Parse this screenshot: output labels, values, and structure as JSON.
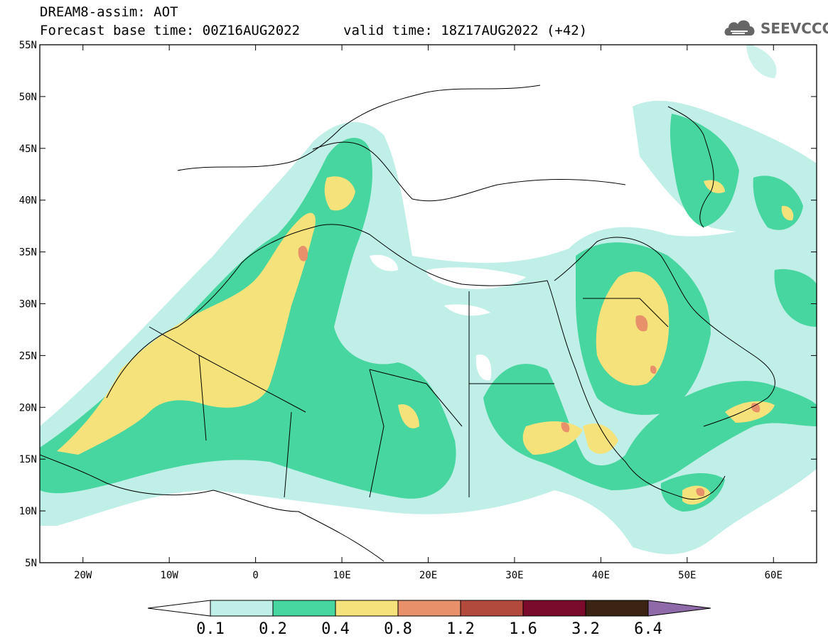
{
  "title": {
    "model": "DREAM8-assim: AOT",
    "base_time": "Forecast base time: 00Z16AUG2022",
    "valid_time": "valid time: 18Z17AUG2022 (+42)"
  },
  "logo": {
    "name": "SEEVCCC",
    "icon": "cloud-icon",
    "color": "#666666"
  },
  "map_extent": {
    "lon_min": -25,
    "lon_max": 65,
    "lat_min": 5,
    "lat_max": 55
  },
  "lat_labels": [
    {
      "value": 55,
      "text": "55N"
    },
    {
      "value": 50,
      "text": "50N"
    },
    {
      "value": 45,
      "text": "45N"
    },
    {
      "value": 40,
      "text": "40N"
    },
    {
      "value": 35,
      "text": "35N"
    },
    {
      "value": 30,
      "text": "30N"
    },
    {
      "value": 25,
      "text": "25N"
    },
    {
      "value": 20,
      "text": "20N"
    },
    {
      "value": 15,
      "text": "15N"
    },
    {
      "value": 10,
      "text": "10N"
    },
    {
      "value": 5,
      "text": "5N"
    }
  ],
  "lon_labels": [
    {
      "value": -20,
      "text": "20W"
    },
    {
      "value": -10,
      "text": "10W"
    },
    {
      "value": 0,
      "text": "0"
    },
    {
      "value": 10,
      "text": "10E"
    },
    {
      "value": 20,
      "text": "20E"
    },
    {
      "value": 30,
      "text": "30E"
    },
    {
      "value": 40,
      "text": "40E"
    },
    {
      "value": 50,
      "text": "50E"
    },
    {
      "value": 60,
      "text": "60E"
    }
  ],
  "legend": {
    "colors": [
      "#bfefe6",
      "#48d6a0",
      "#f5e27a",
      "#e8906a",
      "#b24a3d",
      "#7a0b2c",
      "#3c2414",
      "#8f6aa8"
    ],
    "labels": [
      "0.1",
      "0.2",
      "0.4",
      "0.8",
      "1.2",
      "1.6",
      "3.2",
      "6.4"
    ]
  }
}
